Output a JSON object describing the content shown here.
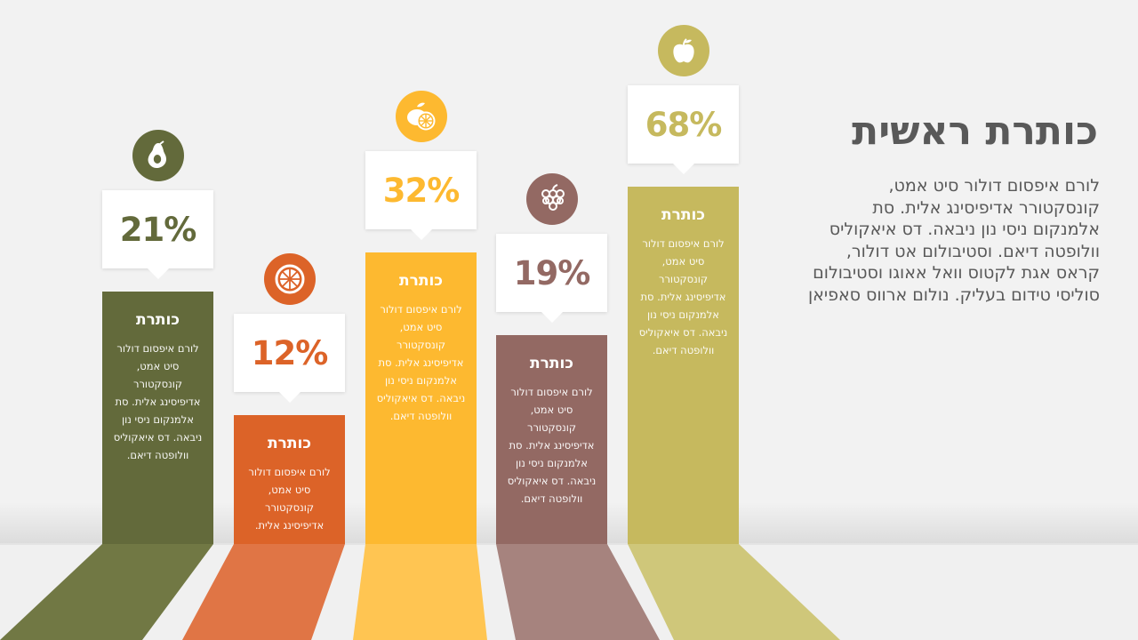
{
  "main": {
    "title": "כותרת ראשית",
    "body": "לורם איפסום דולור סיט אמט, קונסקטורר אדיפיסינג אלית. סת אלמנקום ניסי נון ניבאה. דס איאקוליס וולופטה דיאם. וסטיבולום אט דולור, קראס אגת לקטוס וואל אאוגו וסטיבולום סוליסי טידום בעליק. נולום ארווס סאפיאן"
  },
  "chart_data": {
    "type": "bar",
    "categories": [
      "כותרת",
      "כותרת",
      "כותרת",
      "כותרת",
      "כותרת"
    ],
    "values": [
      21,
      12,
      32,
      19,
      68
    ],
    "value_labels": [
      "21%",
      "12%",
      "32%",
      "19%",
      "68%"
    ],
    "descriptions": [
      "לורם איפסום דולור סיט אמט, קונסקטורר אדיפיסינג אלית. סת אלמנקום ניסי נון ניבאה. דס איאקוליס וולופטה דיאם.",
      "לורם איפסום דולור סיט אמט, קונסקטורר אדיפיסינג אלית.",
      "לורם איפסום דולור סיט אמט, קונסקטורר אדיפיסינג אלית. סת אלמנקום ניסי נון ניבאה. דס איאקוליס וולופטה דיאם.",
      "לורם איפסום דולור סיט אמט, קונסקטורר אדיפיסינג אלית. סת אלמנקום ניסי נון ניבאה. דס איאקוליס וולופטה דיאם.",
      "לורם איפסום דולור סיט אמט, קונסקטורר אדיפיסינג אלית. סת אלמנקום ניסי נון ניבאה. דס איאקוליס וולופטה דיאם."
    ],
    "icons": [
      "avocado-icon",
      "orange-slice-icon",
      "lemon-icon",
      "grapes-icon",
      "apple-icon"
    ],
    "colors": [
      "#636a3b",
      "#dc6328",
      "#fdb930",
      "#936963",
      "#c6b95e"
    ],
    "floor_colors": [
      "#717844",
      "#e07545",
      "#ffc552",
      "#a6837e",
      "#cfc77a"
    ]
  }
}
